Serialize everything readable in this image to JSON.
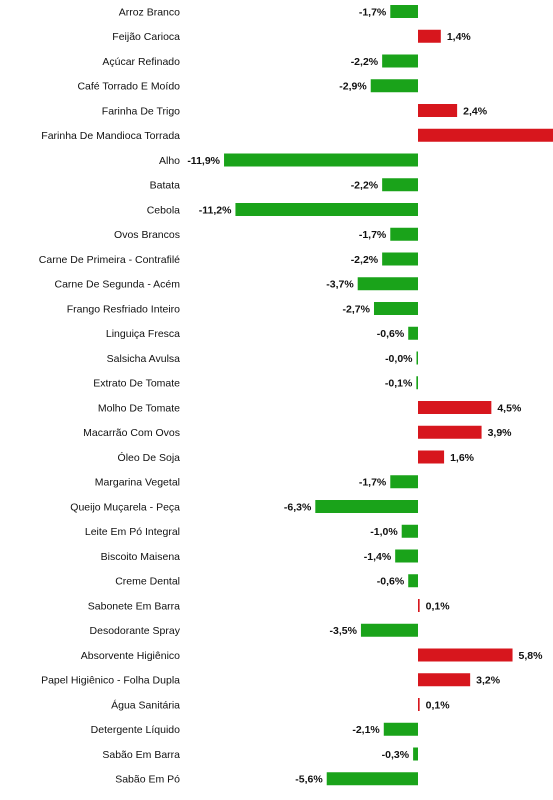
{
  "chart_data": {
    "type": "bar",
    "orientation": "horizontal",
    "title": "",
    "xlabel": "",
    "ylabel": "",
    "grid": false,
    "legend": "none",
    "value_suffix": "%",
    "colors": {
      "positive": "#d7161d",
      "negative": "#1aa31a"
    },
    "categories": [
      "Arroz Branco",
      "Feijão Carioca",
      "Açúcar Refinado",
      "Café Torrado E Moído",
      "Farinha De Trigo",
      "Farinha De Mandioca Torrada",
      "Alho",
      "Batata",
      "Cebola",
      "Ovos Brancos",
      "Carne De Primeira - Contrafilé",
      "Carne De Segunda - Acém",
      "Frango Resfriado Inteiro",
      "Linguiça Fresca",
      "Salsicha Avulsa",
      "Extrato De Tomate",
      "Molho De Tomate",
      "Macarrão Com Ovos",
      "Óleo De Soja",
      "Margarina Vegetal",
      "Queijo Muçarela - Peça",
      "Leite Em Pó Integral",
      "Biscoito Maisena",
      "Creme Dental",
      "Sabonete Em Barra",
      "Desodorante Spray",
      "Absorvente Higiênico",
      "Papel Higiênico - Folha Dupla",
      "Água Sanitária",
      "Detergente Líquido",
      "Sabão Em Barra",
      "Sabão Em Pó"
    ],
    "values": [
      -1.7,
      1.4,
      -2.2,
      -2.9,
      2.4,
      8.6,
      -11.9,
      -2.2,
      -11.2,
      -1.7,
      -2.2,
      -3.7,
      -2.7,
      -0.6,
      -0.04,
      -0.1,
      4.5,
      3.9,
      1.6,
      -1.7,
      -6.3,
      -1.0,
      -1.4,
      -0.6,
      0.1,
      -3.5,
      5.8,
      3.2,
      0.1,
      -2.1,
      -0.3,
      -5.6
    ],
    "value_labels": [
      "-1,7%",
      "1,4%",
      "-2,2%",
      "-2,9%",
      "2,4%",
      "",
      "-11,9%",
      "-2,2%",
      "-11,2%",
      "-1,7%",
      "-2,2%",
      "-3,7%",
      "-2,7%",
      "-0,6%",
      "-0,0%",
      "-0,1%",
      "4,5%",
      "3,9%",
      "1,6%",
      "-1,7%",
      "-6,3%",
      "-1,0%",
      "-1,4%",
      "-0,6%",
      "0,1%",
      "-3,5%",
      "5,8%",
      "3,2%",
      "0,1%",
      "-2,1%",
      "-0,3%",
      "-5,6%"
    ],
    "xlim": [
      -13.2,
      8.8
    ]
  }
}
